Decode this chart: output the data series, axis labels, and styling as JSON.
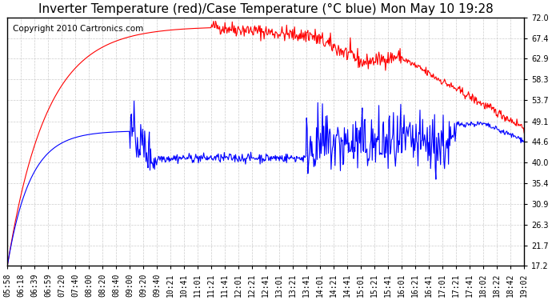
{
  "title": "Inverter Temperature (red)/Case Temperature (°C blue) Mon May 10 19:28",
  "copyright": "Copyright 2010 Cartronics.com",
  "yticks": [
    17.2,
    21.7,
    26.3,
    30.9,
    35.4,
    40.0,
    44.6,
    49.1,
    53.7,
    58.3,
    62.9,
    67.4,
    72.0
  ],
  "xtick_labels": [
    "05:58",
    "06:18",
    "06:39",
    "06:59",
    "07:20",
    "07:40",
    "08:00",
    "08:20",
    "08:40",
    "09:00",
    "09:20",
    "09:40",
    "10:21",
    "10:41",
    "11:01",
    "11:21",
    "11:41",
    "12:01",
    "12:21",
    "12:41",
    "13:01",
    "13:21",
    "13:41",
    "14:01",
    "14:21",
    "14:41",
    "15:01",
    "15:21",
    "15:41",
    "16:01",
    "16:21",
    "16:41",
    "17:01",
    "17:21",
    "17:41",
    "18:02",
    "18:22",
    "18:42",
    "19:02"
  ],
  "ymin": 17.2,
  "ymax": 72.0,
  "red_color": "#ff0000",
  "blue_color": "#0000ff",
  "bg_color": "#ffffff",
  "grid_color": "#c0c0c0",
  "title_fontsize": 11,
  "copyright_fontsize": 7.5,
  "tick_fontsize": 7
}
